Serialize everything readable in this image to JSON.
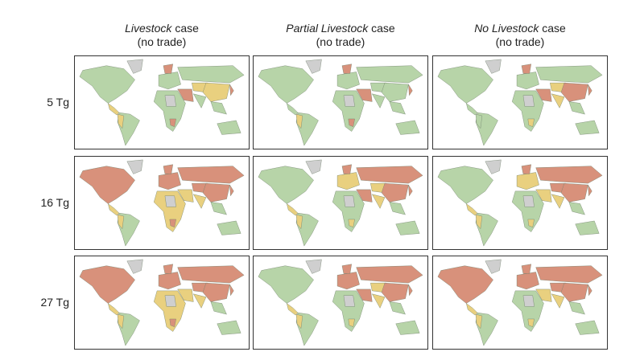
{
  "columns": [
    {
      "italic": "Livestock",
      "rest": " case",
      "sub": "(no trade)"
    },
    {
      "italic": "Partial Livestock",
      "rest": " case",
      "sub": "(no trade)"
    },
    {
      "italic": "No Livestock",
      "rest": " case",
      "sub": "(no trade)"
    }
  ],
  "rows": [
    {
      "label": "5 Tg"
    },
    {
      "label": "16 Tg"
    },
    {
      "label": "27 Tg"
    }
  ],
  "colors": {
    "G": "#b7d4a8",
    "Y": "#e9d07f",
    "R": "#d8917b",
    "N": "#cfcfcf"
  },
  "panels": [
    [
      {
        "na": "G",
        "gl": "N",
        "ca": "Y",
        "sa": "G",
        "sa2": "Y",
        "eu": "G",
        "sc": "R",
        "ru": "G",
        "me": "R",
        "ca2": "Y",
        "cn": "Y",
        "in": "G",
        "sea": "G",
        "af": "G",
        "af2": "N",
        "af3": "R",
        "au": "G",
        "jp": "R"
      },
      {
        "na": "G",
        "gl": "N",
        "ca": "G",
        "sa": "G",
        "sa2": "Y",
        "eu": "G",
        "sc": "R",
        "ru": "G",
        "me": "R",
        "ca2": "G",
        "cn": "G",
        "in": "G",
        "sea": "G",
        "af": "G",
        "af2": "N",
        "af3": "R",
        "au": "G",
        "jp": "R"
      },
      {
        "na": "G",
        "gl": "N",
        "ca": "G",
        "sa": "G",
        "sa2": "G",
        "eu": "G",
        "sc": "R",
        "ru": "G",
        "me": "R",
        "ca2": "Y",
        "cn": "R",
        "in": "Y",
        "sea": "G",
        "af": "G",
        "af2": "N",
        "af3": "Y",
        "au": "G",
        "jp": "R"
      }
    ],
    [
      {
        "na": "R",
        "gl": "N",
        "ca": "Y",
        "sa": "G",
        "sa2": "Y",
        "eu": "R",
        "sc": "R",
        "ru": "R",
        "me": "Y",
        "ca2": "R",
        "cn": "R",
        "in": "Y",
        "sea": "G",
        "af": "Y",
        "af2": "N",
        "af3": "R",
        "au": "G",
        "jp": "R"
      },
      {
        "na": "G",
        "gl": "N",
        "ca": "Y",
        "sa": "G",
        "sa2": "Y",
        "eu": "Y",
        "sc": "R",
        "ru": "R",
        "me": "R",
        "ca2": "Y",
        "cn": "R",
        "in": "Y",
        "sea": "G",
        "af": "G",
        "af2": "N",
        "af3": "Y",
        "au": "G",
        "jp": "R"
      },
      {
        "na": "G",
        "gl": "N",
        "ca": "Y",
        "sa": "G",
        "sa2": "Y",
        "eu": "Y",
        "sc": "R",
        "ru": "R",
        "me": "Y",
        "ca2": "R",
        "cn": "R",
        "in": "Y",
        "sea": "G",
        "af": "G",
        "af2": "N",
        "af3": "Y",
        "au": "G",
        "jp": "R"
      }
    ],
    [
      {
        "na": "R",
        "gl": "N",
        "ca": "Y",
        "sa": "G",
        "sa2": "Y",
        "eu": "R",
        "sc": "R",
        "ru": "R",
        "me": "Y",
        "ca2": "R",
        "cn": "R",
        "in": "Y",
        "sea": "G",
        "af": "Y",
        "af2": "N",
        "af3": "R",
        "au": "G",
        "jp": "R"
      },
      {
        "na": "G",
        "gl": "N",
        "ca": "Y",
        "sa": "G",
        "sa2": "Y",
        "eu": "R",
        "sc": "R",
        "ru": "R",
        "me": "R",
        "ca2": "Y",
        "cn": "R",
        "in": "Y",
        "sea": "G",
        "af": "G",
        "af2": "N",
        "af3": "Y",
        "au": "G",
        "jp": "R"
      },
      {
        "na": "R",
        "gl": "N",
        "ca": "Y",
        "sa": "G",
        "sa2": "Y",
        "eu": "R",
        "sc": "R",
        "ru": "R",
        "me": "Y",
        "ca2": "R",
        "cn": "R",
        "in": "Y",
        "sea": "G",
        "af": "G",
        "af2": "N",
        "af3": "Y",
        "au": "G",
        "jp": "R"
      }
    ]
  ]
}
